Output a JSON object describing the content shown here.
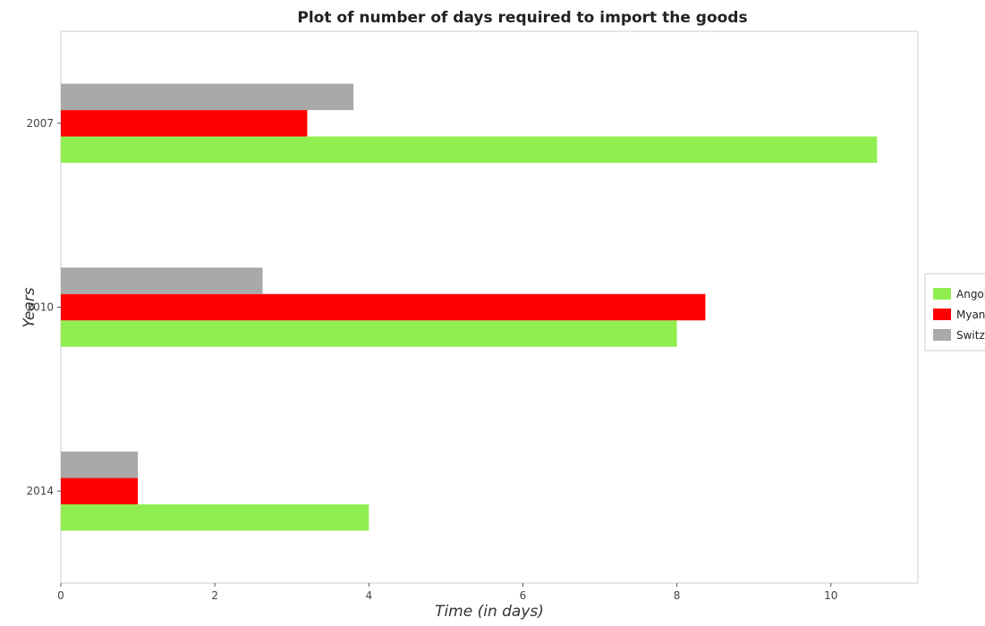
{
  "chart_data": {
    "type": "bar",
    "orientation": "horizontal",
    "title": "Plot of number of days required to import the goods",
    "xlabel": "Time (in days)",
    "ylabel": "Years",
    "categories": [
      "2007",
      "2010",
      "2014"
    ],
    "series": [
      {
        "name": "Angola",
        "color": "#90ee50",
        "values": [
          10.6,
          8.0,
          4.0
        ]
      },
      {
        "name": "Myanmar",
        "color": "#ff0000",
        "values": [
          3.2,
          8.37,
          1.0
        ]
      },
      {
        "name": "Switzerland",
        "color": "#a9a9a9",
        "values": [
          3.8,
          2.62,
          1.0
        ]
      }
    ],
    "xlim": [
      0,
      11.13
    ],
    "xticks": [
      0,
      2,
      4,
      6,
      8,
      10
    ],
    "xtick_labels": [
      "0",
      "2",
      "4",
      "6",
      "8",
      "10"
    ],
    "grid": false,
    "legend_position": "right"
  }
}
